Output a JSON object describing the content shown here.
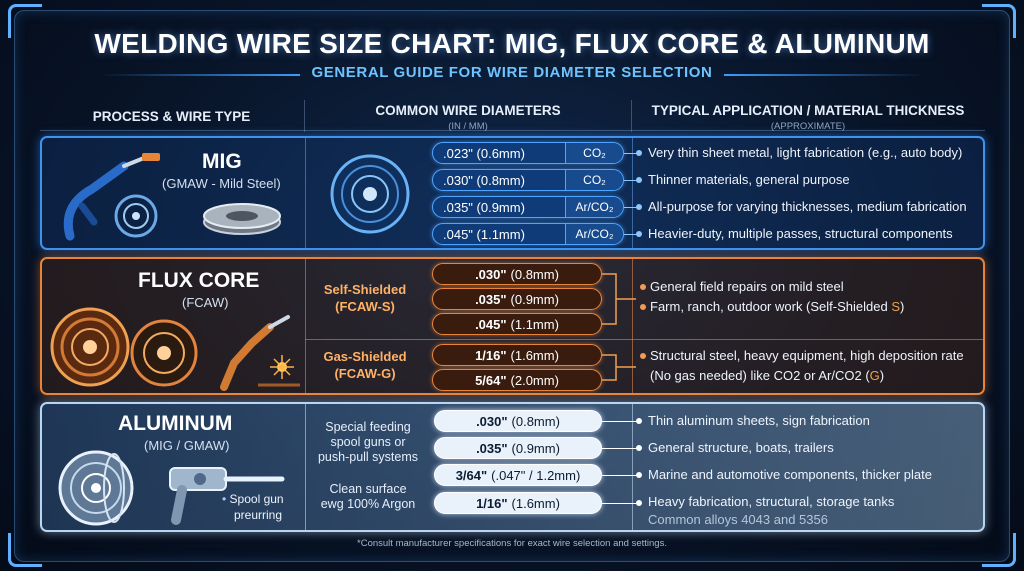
{
  "title": "WELDING WIRE SIZE CHART: MIG, FLUX CORE & ALUMINUM",
  "subtitle": "GENERAL GUIDE FOR WIRE DIAMETER SELECTION",
  "headers": {
    "process": "PROCESS & WIRE TYPE",
    "diameters": "COMMON WIRE DIAMETERS",
    "diameters_unit": "(IN / MM)",
    "application": "TYPICAL APPLICATION / MATERIAL THICKNESS",
    "application_note": "(APPROXIMATE)"
  },
  "mig": {
    "name": "MIG",
    "sub": "(GMAW - Mild Steel)",
    "rows": [
      {
        "dia": ".023\" (0.6mm)",
        "gas": "CO₂",
        "app": "Very thin sheet metal, light fabrication (e.g., auto body)"
      },
      {
        "dia": ".030\" (0.8mm)",
        "gas": "CO₂",
        "app": "Thinner materials, general purpose"
      },
      {
        "dia": ".035\" (0.9mm)",
        "gas": "Ar/CO₂",
        "app": "All-purpose for varying thicknesses, medium fabrication"
      },
      {
        "dia": ".045\" (1.1mm)",
        "gas": "Ar/CO₂",
        "app": "Heavier-duty, multiple passes, structural components"
      }
    ]
  },
  "flux": {
    "name": "FLUX CORE",
    "sub": "(FCAW)",
    "self_label_1": "Self-Shielded",
    "self_label_2": "(FCAW-S)",
    "gas_label_1": "Gas-Shielded",
    "gas_label_2": "(FCAW-G)",
    "self_rows": [
      {
        "in": ".030\"",
        "mm": "(0.8mm)"
      },
      {
        "in": ".035\"",
        "mm": "(0.9mm)"
      },
      {
        "in": ".045\"",
        "mm": "(1.1mm)"
      }
    ],
    "gas_rows": [
      {
        "in": "1/16\"",
        "mm": "(1.6mm)"
      },
      {
        "in": "5/64\"",
        "mm": "(2.0mm)"
      }
    ],
    "self_app_1": "General field repairs on mild steel",
    "self_app_2a": "Farm, ranch, outdoor work (Self-Shielded ",
    "self_app_2b": "S",
    "self_app_2c": ")",
    "gas_app_1": "Structural steel, heavy equipment, high deposition rate",
    "gas_app_2a": "(No gas needed) like CO2 or Ar/CO2 (",
    "gas_app_2b": "G",
    "gas_app_2c": ")"
  },
  "aluminum": {
    "name": "ALUMINUM",
    "sub": "(MIG / GMAW)",
    "spool_note_1": "Spool gun",
    "spool_note_2": "preurring",
    "feed_note_1": "Special feeding",
    "feed_note_2": "spool guns or",
    "feed_note_3": "push-pull systems",
    "clean_note_1": "Clean surface",
    "clean_note_2": "ewg 100% Argon",
    "rows": [
      {
        "in": ".030\"",
        "mm": "(0.8mm)",
        "app": "Thin aluminum sheets, sign fabrication"
      },
      {
        "in": ".035\"",
        "mm": "(0.9mm)",
        "app": "General structure, boats, trailers"
      },
      {
        "in": "3/64\"",
        "mm": "(.047\" / 1.2mm)",
        "app": "Marine and automotive components, thicker plate"
      },
      {
        "in": "1/16\"",
        "mm": "(1.6mm)",
        "app": "Heavy fabrication, structural, storage tanks"
      }
    ],
    "alloys": "Common alloys 4043 and 5356"
  },
  "footer": "*Consult manufacturer specifications for exact wire selection and settings.",
  "colors": {
    "mig_accent": "#3e92f0",
    "flux_accent": "#e8843a",
    "aluminum_accent": "#b8d6f2",
    "subtitle": "#6ec3ff"
  }
}
